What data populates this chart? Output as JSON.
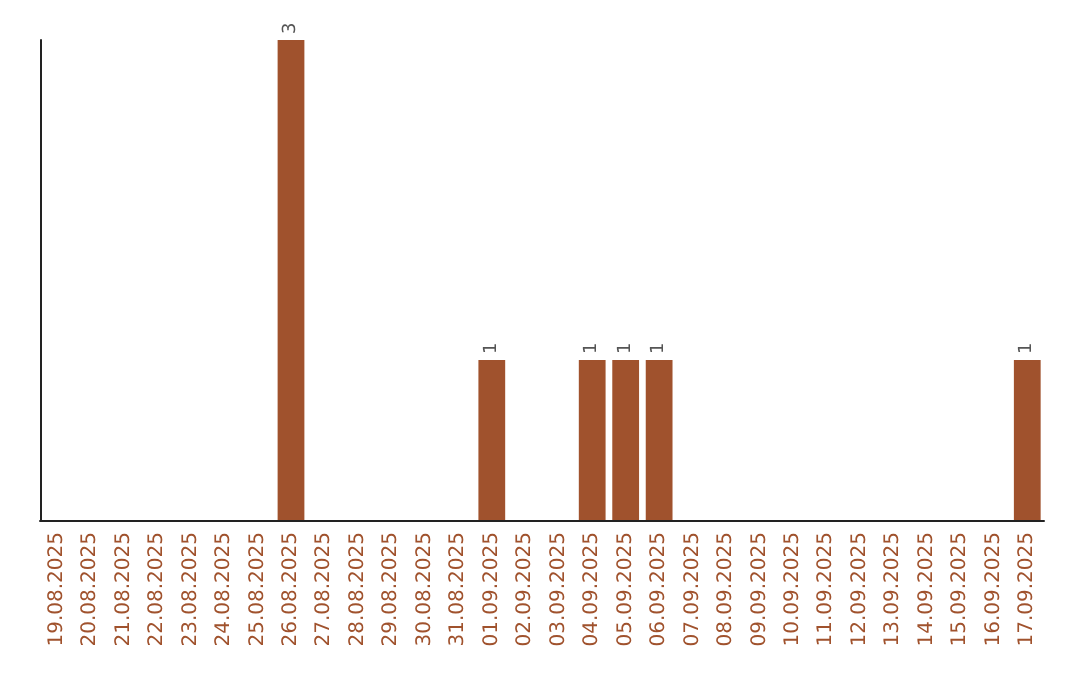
{
  "chart_data": {
    "type": "bar",
    "categories": [
      "19.08.2025",
      "20.08.2025",
      "21.08.2025",
      "22.08.2025",
      "23.08.2025",
      "24.08.2025",
      "25.08.2025",
      "26.08.2025",
      "27.08.2025",
      "28.08.2025",
      "29.08.2025",
      "30.08.2025",
      "31.08.2025",
      "01.09.2025",
      "02.09.2025",
      "03.09.2025",
      "04.09.2025",
      "05.09.2025",
      "06.09.2025",
      "07.09.2025",
      "08.09.2025",
      "09.09.2025",
      "10.09.2025",
      "11.09.2025",
      "12.09.2025",
      "13.09.2025",
      "14.09.2025",
      "15.09.2025",
      "16.09.2025",
      "17.09.2025"
    ],
    "values": [
      0,
      0,
      0,
      0,
      0,
      0,
      0,
      3,
      0,
      0,
      0,
      0,
      0,
      1,
      0,
      0,
      1,
      1,
      1,
      0,
      0,
      0,
      0,
      0,
      0,
      0,
      0,
      0,
      0,
      1
    ],
    "value_labels": [
      null,
      null,
      null,
      null,
      null,
      null,
      null,
      "3",
      null,
      null,
      null,
      null,
      null,
      "1",
      null,
      null,
      "1",
      "1",
      "1",
      null,
      null,
      null,
      null,
      null,
      null,
      null,
      null,
      null,
      null,
      "1"
    ],
    "color": "#a0522d",
    "grid": false
  }
}
